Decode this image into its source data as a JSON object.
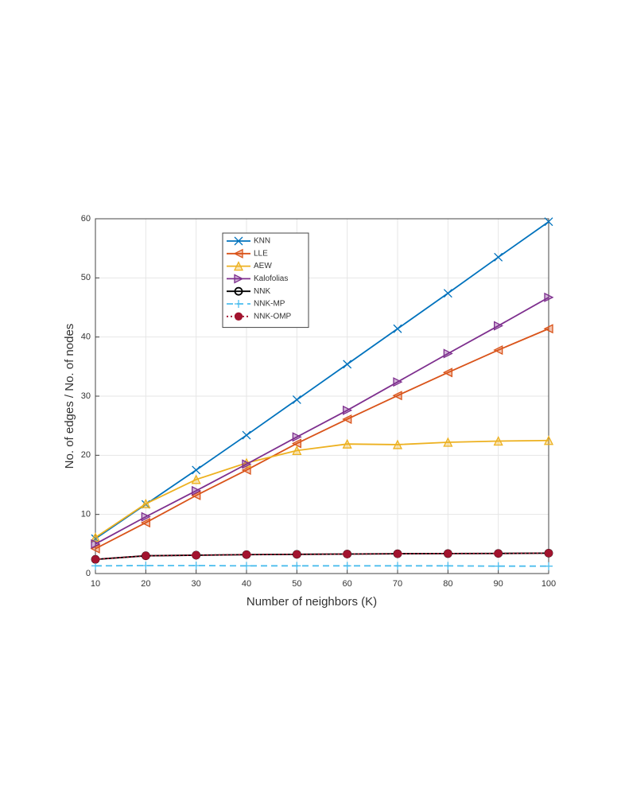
{
  "chart_data": {
    "type": "line",
    "xlabel": "Number of neighbors (K)",
    "ylabel": "No. of edges / No. of nodes",
    "x": [
      10,
      20,
      30,
      40,
      50,
      60,
      70,
      80,
      90,
      100
    ],
    "xlim": [
      10,
      100
    ],
    "xticks": [
      10,
      20,
      30,
      40,
      50,
      60,
      70,
      80,
      90,
      100
    ],
    "ylim": [
      0,
      60
    ],
    "yticks": [
      0,
      10,
      20,
      30,
      40,
      50,
      60
    ],
    "grid": true,
    "legend": "upper left",
    "series": [
      {
        "name": "KNN",
        "color": "#0072bd",
        "marker": "x",
        "dash": "solid",
        "values": [
          5.9,
          11.7,
          17.5,
          23.4,
          29.4,
          35.4,
          41.4,
          47.4,
          53.5,
          59.5
        ]
      },
      {
        "name": "LLE",
        "color": "#d95319",
        "marker": "triangle-left",
        "dash": "solid",
        "values": [
          4.2,
          8.6,
          13.2,
          17.5,
          22.0,
          26.1,
          30.1,
          34.0,
          37.8,
          41.4
        ]
      },
      {
        "name": "AEW",
        "color": "#edb120",
        "marker": "triangle-up",
        "dash": "solid",
        "values": [
          6.1,
          11.8,
          15.9,
          18.7,
          20.8,
          21.9,
          21.8,
          22.2,
          22.4,
          22.5
        ]
      },
      {
        "name": "Kalofolias",
        "color": "#7e2f8e",
        "marker": "triangle-right",
        "dash": "solid",
        "values": [
          5.0,
          9.6,
          14.0,
          18.5,
          23.1,
          27.6,
          32.4,
          37.2,
          41.9,
          46.7
        ]
      },
      {
        "name": "NNK",
        "color": "#000000",
        "marker": "circle",
        "dash": "solid",
        "values": [
          2.4,
          3.0,
          3.1,
          3.2,
          3.25,
          3.3,
          3.35,
          3.38,
          3.4,
          3.45
        ]
      },
      {
        "name": "NNK-MP",
        "color": "#4dbeee",
        "marker": "plus",
        "dash": "dashed",
        "values": [
          1.3,
          1.35,
          1.35,
          1.3,
          1.3,
          1.3,
          1.3,
          1.3,
          1.25,
          1.25
        ]
      },
      {
        "name": "NNK-OMP",
        "color": "#a2142f",
        "marker": "dot",
        "dash": "dotted",
        "values": [
          2.4,
          3.0,
          3.1,
          3.2,
          3.25,
          3.3,
          3.35,
          3.38,
          3.4,
          3.45
        ]
      }
    ]
  }
}
